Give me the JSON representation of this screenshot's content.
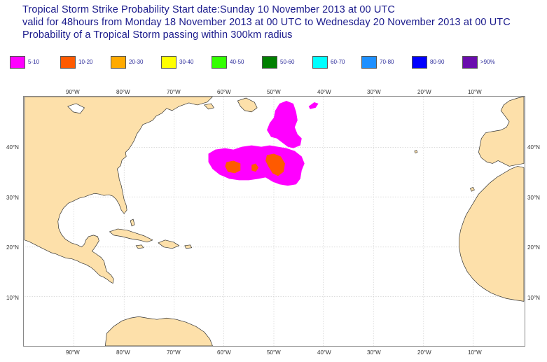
{
  "header": {
    "line1": "Tropical Storm Strike Probability Start date:Sunday 10 November 2013 at 00 UTC",
    "line2": "valid for 48hours from Monday 18 November 2013 at 00 UTC to  Wednesday 20 November 2013 at 00 UTC",
    "line3": "Probability of a Tropical Storm passing within 300km radius"
  },
  "legend": [
    {
      "label": "5-10",
      "color": "#ff00ff"
    },
    {
      "label": "10-20",
      "color": "#ff5a00"
    },
    {
      "label": "20-30",
      "color": "#ffaa00"
    },
    {
      "label": "30-40",
      "color": "#ffff00"
    },
    {
      "label": "40-50",
      "color": "#33ff00"
    },
    {
      "label": "50-60",
      "color": "#008000"
    },
    {
      "label": "60-70",
      "color": "#00ffff"
    },
    {
      "label": "70-80",
      "color": "#1e90ff"
    },
    {
      "label": "80-90",
      "color": "#0000ff"
    },
    {
      "label": ">90%",
      "color": "#6a0dad"
    }
  ],
  "axes": {
    "longitudes": [
      "90°W",
      "80°W",
      "70°W",
      "60°W",
      "50°W",
      "40°W",
      "30°W",
      "20°W",
      "10°W"
    ],
    "latitudes": [
      "40°N",
      "30°N",
      "20°N",
      "10°N"
    ]
  },
  "colors": {
    "land": "#fde0aa",
    "ocean": "#ffffff",
    "coast": "#333333",
    "grid": "#c8c8c8"
  }
}
